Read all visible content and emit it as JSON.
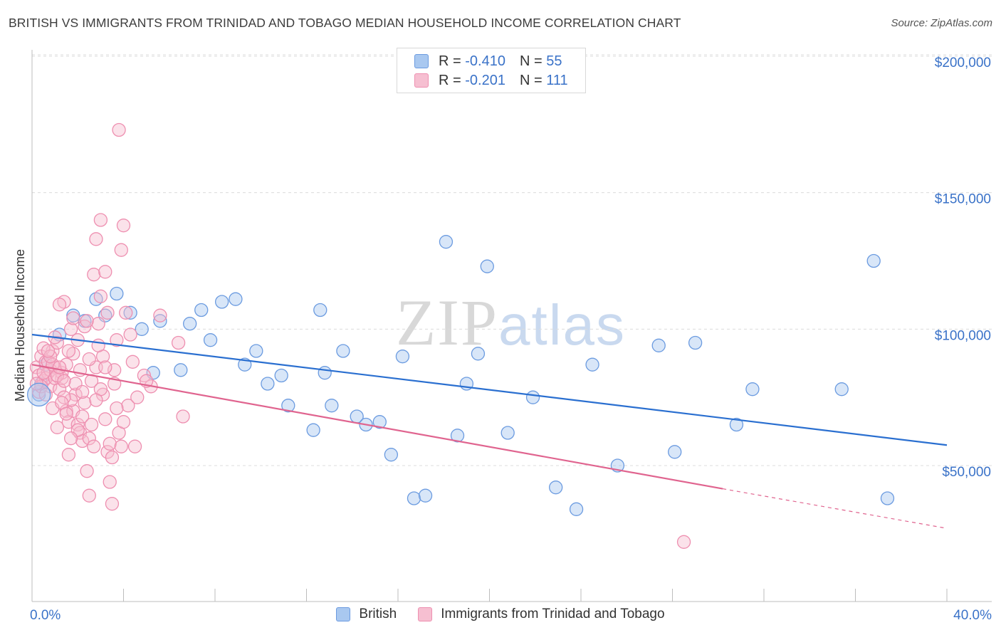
{
  "header": {
    "title": "BRITISH VS IMMIGRANTS FROM TRINIDAD AND TOBAGO MEDIAN HOUSEHOLD INCOME CORRELATION CHART",
    "source": "Source: ZipAtlas.com"
  },
  "watermark": {
    "zip": "ZIP",
    "atlas": "atlas"
  },
  "legend_top": [
    {
      "r_label": "R =",
      "r_value": "-0.410",
      "n_label": "N =",
      "n_value": "55"
    },
    {
      "r_label": "R =",
      "r_value": "-0.201",
      "n_label": "N =",
      "n_value": "111"
    }
  ],
  "colors": {
    "blue_fill": "#a9c8f0",
    "blue_stroke": "#6b9be0",
    "blue_line": "#2a6fd0",
    "pink_fill": "#f6bfd1",
    "pink_stroke": "#ee8fb0",
    "pink_line": "#e0648f",
    "tick_label": "#3a72c8",
    "grid": "#dcdcdc"
  },
  "chart_data": {
    "type": "scatter",
    "ylabel": "Median Household Income",
    "xlim": [
      0,
      40
    ],
    "ylim": [
      0,
      210000
    ],
    "x_ticks_labels": [
      {
        "value": 0,
        "label": "0.0%"
      },
      {
        "value": 40,
        "label": "40.0%"
      }
    ],
    "y_ticks_labels": [
      {
        "value": 50000,
        "label": "$50,000"
      },
      {
        "value": 100000,
        "label": "$100,000"
      },
      {
        "value": 150000,
        "label": "$150,000"
      },
      {
        "value": 200000,
        "label": "$200,000"
      }
    ],
    "grid": true,
    "series": [
      {
        "name": "British",
        "trend": {
          "x0": 0,
          "y0": 98000,
          "x1": 40,
          "y1": 57500
        },
        "points": [
          [
            0.3,
            76000
          ],
          [
            1.2,
            98000
          ],
          [
            1.8,
            105000
          ],
          [
            2.3,
            103000
          ],
          [
            2.8,
            111000
          ],
          [
            3.2,
            105000
          ],
          [
            3.7,
            113000
          ],
          [
            4.3,
            106000
          ],
          [
            4.8,
            100000
          ],
          [
            5.6,
            103000
          ],
          [
            5.3,
            84000
          ],
          [
            6.5,
            85000
          ],
          [
            6.9,
            102000
          ],
          [
            7.4,
            107000
          ],
          [
            7.8,
            96000
          ],
          [
            8.3,
            110000
          ],
          [
            8.9,
            111000
          ],
          [
            9.3,
            87000
          ],
          [
            9.8,
            92000
          ],
          [
            10.3,
            80000
          ],
          [
            10.9,
            83000
          ],
          [
            11.2,
            72000
          ],
          [
            12.3,
            63000
          ],
          [
            12.6,
            107000
          ],
          [
            12.8,
            84000
          ],
          [
            13.1,
            72000
          ],
          [
            13.6,
            92000
          ],
          [
            14.2,
            68000
          ],
          [
            14.6,
            65000
          ],
          [
            15.2,
            66000
          ],
          [
            15.7,
            54000
          ],
          [
            16.2,
            90000
          ],
          [
            16.7,
            38000
          ],
          [
            17.2,
            39000
          ],
          [
            18.1,
            132000
          ],
          [
            18.6,
            61000
          ],
          [
            19.0,
            80000
          ],
          [
            19.5,
            91000
          ],
          [
            19.9,
            123000
          ],
          [
            20.8,
            62000
          ],
          [
            21.9,
            75000
          ],
          [
            22.9,
            42000
          ],
          [
            23.8,
            34000
          ],
          [
            24.5,
            87000
          ],
          [
            25.6,
            50000
          ],
          [
            27.4,
            94000
          ],
          [
            28.1,
            55000
          ],
          [
            29.0,
            95000
          ],
          [
            30.8,
            65000
          ],
          [
            31.5,
            78000
          ],
          [
            35.4,
            78000
          ],
          [
            36.8,
            125000
          ],
          [
            37.4,
            38000
          ],
          [
            0.4,
            80000
          ],
          [
            0.6,
            87000
          ]
        ]
      },
      {
        "name": "Immigrants from Trinidad and Tobago",
        "trend": {
          "x0": 0,
          "y0": 87000,
          "x1": 30.2,
          "y1": 41500
        },
        "trend_dashed": {
          "x0": 30.2,
          "y0": 41500,
          "x1": 40,
          "y1": 27000
        },
        "points": [
          [
            0.2,
            86000
          ],
          [
            0.3,
            83000
          ],
          [
            0.4,
            90000
          ],
          [
            0.5,
            81000
          ],
          [
            0.6,
            88000
          ],
          [
            0.7,
            84000
          ],
          [
            0.8,
            79000
          ],
          [
            0.9,
            92000
          ],
          [
            1.0,
            86000
          ],
          [
            1.1,
            95000
          ],
          [
            1.2,
            78000
          ],
          [
            1.3,
            82000
          ],
          [
            1.4,
            110000
          ],
          [
            1.5,
            70000
          ],
          [
            1.6,
            66000
          ],
          [
            1.7,
            100000
          ],
          [
            1.8,
            91000
          ],
          [
            1.9,
            76000
          ],
          [
            2.0,
            65000
          ],
          [
            2.1,
            62000
          ],
          [
            2.2,
            59000
          ],
          [
            2.3,
            73000
          ],
          [
            2.4,
            48000
          ],
          [
            2.5,
            39000
          ],
          [
            2.6,
            81000
          ],
          [
            2.7,
            120000
          ],
          [
            2.8,
            133000
          ],
          [
            2.9,
            102000
          ],
          [
            3.0,
            112000
          ],
          [
            3.1,
            76000
          ],
          [
            3.2,
            67000
          ],
          [
            3.3,
            55000
          ],
          [
            3.4,
            44000
          ],
          [
            3.5,
            36000
          ],
          [
            3.6,
            80000
          ],
          [
            3.7,
            96000
          ],
          [
            3.8,
            173000
          ],
          [
            3.9,
            129000
          ],
          [
            4.0,
            138000
          ],
          [
            4.1,
            106000
          ],
          [
            4.2,
            72000
          ],
          [
            4.3,
            98000
          ],
          [
            4.4,
            88000
          ],
          [
            4.5,
            57000
          ],
          [
            4.9,
            83000
          ],
          [
            5.2,
            79000
          ],
          [
            5.6,
            105000
          ],
          [
            6.4,
            95000
          ],
          [
            6.6,
            68000
          ],
          [
            1.0,
            97000
          ],
          [
            1.3,
            84000
          ],
          [
            0.9,
            71000
          ],
          [
            2.1,
            85000
          ],
          [
            3.0,
            140000
          ],
          [
            3.2,
            121000
          ],
          [
            1.5,
            87000
          ],
          [
            1.8,
            70000
          ],
          [
            2.0,
            63000
          ],
          [
            1.6,
            54000
          ],
          [
            2.8,
            86000
          ],
          [
            3.1,
            90000
          ],
          [
            0.5,
            93000
          ],
          [
            0.6,
            82000
          ],
          [
            0.8,
            85000
          ],
          [
            1.1,
            64000
          ],
          [
            1.7,
            74000
          ],
          [
            2.3,
            101000
          ],
          [
            2.5,
            60000
          ],
          [
            3.3,
            106000
          ],
          [
            3.4,
            58000
          ],
          [
            0.3,
            77000
          ],
          [
            0.7,
            88000
          ],
          [
            1.2,
            109000
          ],
          [
            1.4,
            75000
          ],
          [
            2.9,
            94000
          ],
          [
            1.9,
            80000
          ],
          [
            2.2,
            68000
          ],
          [
            2.7,
            57000
          ],
          [
            3.5,
            53000
          ],
          [
            3.8,
            62000
          ],
          [
            1.0,
            82000
          ],
          [
            0.4,
            79000
          ],
          [
            1.6,
            92000
          ],
          [
            2.4,
            103000
          ],
          [
            3.6,
            85000
          ],
          [
            4.6,
            75000
          ],
          [
            5.0,
            81000
          ],
          [
            0.2,
            80000
          ],
          [
            0.9,
            87000
          ],
          [
            1.3,
            73000
          ],
          [
            2.6,
            65000
          ],
          [
            3.9,
            57000
          ],
          [
            1.1,
            83000
          ],
          [
            1.5,
            69000
          ],
          [
            2.0,
            96000
          ],
          [
            2.2,
            77000
          ],
          [
            0.6,
            76000
          ],
          [
            0.8,
            90000
          ],
          [
            1.8,
            104000
          ],
          [
            3.0,
            78000
          ],
          [
            1.4,
            81000
          ],
          [
            2.5,
            89000
          ],
          [
            3.2,
            86000
          ],
          [
            3.7,
            71000
          ],
          [
            4.0,
            66000
          ],
          [
            0.5,
            84000
          ],
          [
            1.7,
            60000
          ],
          [
            2.8,
            74000
          ],
          [
            28.5,
            22000
          ],
          [
            1.2,
            86000
          ],
          [
            0.7,
            92000
          ]
        ]
      }
    ]
  },
  "legend_bottom": [
    {
      "label": "British"
    },
    {
      "label": "Immigrants from Trinidad and Tobago"
    }
  ]
}
